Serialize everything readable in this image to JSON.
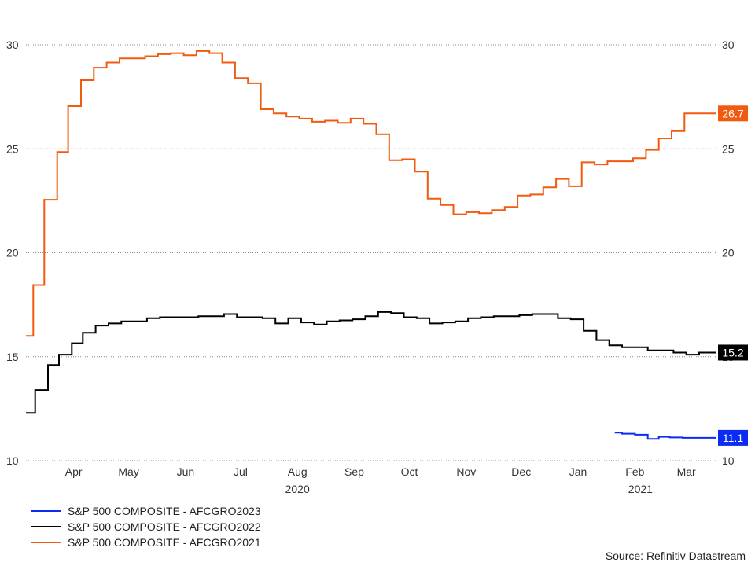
{
  "chart_data": {
    "type": "line",
    "ylim": [
      10,
      30
    ],
    "y_ticks": [
      10,
      15,
      20,
      25,
      30
    ],
    "grid": true,
    "legend_position": "bottom-left",
    "x_range": [
      "2020-03-20",
      "2021-03-31"
    ],
    "month_ticks": [
      {
        "label": "Apr",
        "date": "2020-04-15"
      },
      {
        "label": "May",
        "date": "2020-05-15"
      },
      {
        "label": "Jun",
        "date": "2020-06-15"
      },
      {
        "label": "Jul",
        "date": "2020-07-15"
      },
      {
        "label": "Aug",
        "date": "2020-08-15"
      },
      {
        "label": "Sep",
        "date": "2020-09-15"
      },
      {
        "label": "Oct",
        "date": "2020-10-15"
      },
      {
        "label": "Nov",
        "date": "2020-11-15"
      },
      {
        "label": "Dec",
        "date": "2020-12-15"
      },
      {
        "label": "Jan",
        "date": "2021-01-15"
      },
      {
        "label": "Feb",
        "date": "2021-02-15"
      },
      {
        "label": "Mar",
        "date": "2021-03-15"
      }
    ],
    "year_labels": [
      {
        "label": "2020",
        "date": "2020-08-15"
      },
      {
        "label": "2021",
        "date": "2021-02-18"
      }
    ],
    "series": [
      {
        "name": "S&P 500 COMPOSITE - AFCGRO2023",
        "color": "#0a2cf5",
        "last_value_label": "11.1",
        "points": [
          [
            "2021-02-04",
            11.35
          ],
          [
            "2021-02-08",
            11.35
          ],
          [
            "2021-02-08",
            11.3
          ],
          [
            "2021-02-15",
            11.3
          ],
          [
            "2021-02-15",
            11.25
          ],
          [
            "2021-02-22",
            11.25
          ],
          [
            "2021-02-22",
            11.05
          ],
          [
            "2021-02-28",
            11.05
          ],
          [
            "2021-02-28",
            11.15
          ],
          [
            "2021-03-06",
            11.15
          ],
          [
            "2021-03-06",
            11.12
          ],
          [
            "2021-03-13",
            11.12
          ],
          [
            "2021-03-13",
            11.1
          ],
          [
            "2021-03-31",
            11.1
          ]
        ]
      },
      {
        "name": "S&P 500 COMPOSITE - AFCGRO2022",
        "color": "#000000",
        "last_value_label": "15.2",
        "points": [
          [
            "2020-03-20",
            12.3
          ],
          [
            "2020-03-25",
            12.3
          ],
          [
            "2020-03-25",
            13.4
          ],
          [
            "2020-04-01",
            13.4
          ],
          [
            "2020-04-01",
            14.6
          ],
          [
            "2020-04-07",
            14.6
          ],
          [
            "2020-04-07",
            15.1
          ],
          [
            "2020-04-14",
            15.1
          ],
          [
            "2020-04-14",
            15.65
          ],
          [
            "2020-04-20",
            15.65
          ],
          [
            "2020-04-20",
            16.15
          ],
          [
            "2020-04-27",
            16.15
          ],
          [
            "2020-04-27",
            16.5
          ],
          [
            "2020-05-04",
            16.5
          ],
          [
            "2020-05-04",
            16.6
          ],
          [
            "2020-05-11",
            16.6
          ],
          [
            "2020-05-11",
            16.7
          ],
          [
            "2020-05-25",
            16.7
          ],
          [
            "2020-05-25",
            16.85
          ],
          [
            "2020-06-01",
            16.85
          ],
          [
            "2020-06-01",
            16.9
          ],
          [
            "2020-06-22",
            16.9
          ],
          [
            "2020-06-22",
            16.95
          ],
          [
            "2020-07-06",
            16.95
          ],
          [
            "2020-07-06",
            17.05
          ],
          [
            "2020-07-13",
            17.05
          ],
          [
            "2020-07-13",
            16.9
          ],
          [
            "2020-07-27",
            16.9
          ],
          [
            "2020-07-27",
            16.85
          ],
          [
            "2020-08-03",
            16.85
          ],
          [
            "2020-08-03",
            16.6
          ],
          [
            "2020-08-10",
            16.6
          ],
          [
            "2020-08-10",
            16.85
          ],
          [
            "2020-08-17",
            16.85
          ],
          [
            "2020-08-17",
            16.65
          ],
          [
            "2020-08-24",
            16.65
          ],
          [
            "2020-08-24",
            16.55
          ],
          [
            "2020-08-31",
            16.55
          ],
          [
            "2020-08-31",
            16.7
          ],
          [
            "2020-09-07",
            16.7
          ],
          [
            "2020-09-07",
            16.75
          ],
          [
            "2020-09-14",
            16.75
          ],
          [
            "2020-09-14",
            16.8
          ],
          [
            "2020-09-21",
            16.8
          ],
          [
            "2020-09-21",
            16.95
          ],
          [
            "2020-09-28",
            16.95
          ],
          [
            "2020-09-28",
            17.15
          ],
          [
            "2020-10-05",
            17.15
          ],
          [
            "2020-10-05",
            17.1
          ],
          [
            "2020-10-12",
            17.1
          ],
          [
            "2020-10-12",
            16.9
          ],
          [
            "2020-10-19",
            16.9
          ],
          [
            "2020-10-19",
            16.85
          ],
          [
            "2020-10-26",
            16.85
          ],
          [
            "2020-10-26",
            16.6
          ],
          [
            "2020-11-02",
            16.6
          ],
          [
            "2020-11-02",
            16.65
          ],
          [
            "2020-11-09",
            16.65
          ],
          [
            "2020-11-09",
            16.7
          ],
          [
            "2020-11-16",
            16.7
          ],
          [
            "2020-11-16",
            16.85
          ],
          [
            "2020-11-23",
            16.85
          ],
          [
            "2020-11-23",
            16.9
          ],
          [
            "2020-11-30",
            16.9
          ],
          [
            "2020-11-30",
            16.95
          ],
          [
            "2020-12-14",
            16.95
          ],
          [
            "2020-12-14",
            17.0
          ],
          [
            "2020-12-21",
            17.0
          ],
          [
            "2020-12-21",
            17.05
          ],
          [
            "2021-01-04",
            17.05
          ],
          [
            "2021-01-04",
            16.85
          ],
          [
            "2021-01-11",
            16.85
          ],
          [
            "2021-01-11",
            16.8
          ],
          [
            "2021-01-18",
            16.8
          ],
          [
            "2021-01-18",
            16.25
          ],
          [
            "2021-01-25",
            16.25
          ],
          [
            "2021-01-25",
            15.8
          ],
          [
            "2021-02-01",
            15.8
          ],
          [
            "2021-02-01",
            15.55
          ],
          [
            "2021-02-08",
            15.55
          ],
          [
            "2021-02-08",
            15.45
          ],
          [
            "2021-02-22",
            15.45
          ],
          [
            "2021-02-22",
            15.3
          ],
          [
            "2021-03-08",
            15.3
          ],
          [
            "2021-03-08",
            15.2
          ],
          [
            "2021-03-15",
            15.2
          ],
          [
            "2021-03-15",
            15.1
          ],
          [
            "2021-03-22",
            15.1
          ],
          [
            "2021-03-22",
            15.2
          ],
          [
            "2021-03-31",
            15.2
          ]
        ]
      },
      {
        "name": "S&P 500 COMPOSITE - AFCGRO2021",
        "color": "#f25a0f",
        "last_value_label": "26.7",
        "points": [
          [
            "2020-03-20",
            16.0
          ],
          [
            "2020-03-24",
            16.0
          ],
          [
            "2020-03-24",
            18.45
          ],
          [
            "2020-03-30",
            18.45
          ],
          [
            "2020-03-30",
            22.55
          ],
          [
            "2020-04-06",
            22.55
          ],
          [
            "2020-04-06",
            24.85
          ],
          [
            "2020-04-12",
            24.85
          ],
          [
            "2020-04-12",
            27.05
          ],
          [
            "2020-04-19",
            27.05
          ],
          [
            "2020-04-19",
            28.3
          ],
          [
            "2020-04-26",
            28.3
          ],
          [
            "2020-04-26",
            28.9
          ],
          [
            "2020-05-03",
            28.9
          ],
          [
            "2020-05-03",
            29.15
          ],
          [
            "2020-05-10",
            29.15
          ],
          [
            "2020-05-10",
            29.35
          ],
          [
            "2020-05-24",
            29.35
          ],
          [
            "2020-05-24",
            29.45
          ],
          [
            "2020-05-31",
            29.45
          ],
          [
            "2020-05-31",
            29.55
          ],
          [
            "2020-06-07",
            29.55
          ],
          [
            "2020-06-07",
            29.6
          ],
          [
            "2020-06-14",
            29.6
          ],
          [
            "2020-06-14",
            29.5
          ],
          [
            "2020-06-21",
            29.5
          ],
          [
            "2020-06-21",
            29.7
          ],
          [
            "2020-06-28",
            29.7
          ],
          [
            "2020-06-28",
            29.6
          ],
          [
            "2020-07-05",
            29.6
          ],
          [
            "2020-07-05",
            29.15
          ],
          [
            "2020-07-12",
            29.15
          ],
          [
            "2020-07-12",
            28.4
          ],
          [
            "2020-07-19",
            28.4
          ],
          [
            "2020-07-19",
            28.15
          ],
          [
            "2020-07-26",
            28.15
          ],
          [
            "2020-07-26",
            26.9
          ],
          [
            "2020-08-02",
            26.9
          ],
          [
            "2020-08-02",
            26.7
          ],
          [
            "2020-08-09",
            26.7
          ],
          [
            "2020-08-09",
            26.55
          ],
          [
            "2020-08-16",
            26.55
          ],
          [
            "2020-08-16",
            26.45
          ],
          [
            "2020-08-23",
            26.45
          ],
          [
            "2020-08-23",
            26.3
          ],
          [
            "2020-08-30",
            26.3
          ],
          [
            "2020-08-30",
            26.35
          ],
          [
            "2020-09-06",
            26.35
          ],
          [
            "2020-09-06",
            26.25
          ],
          [
            "2020-09-13",
            26.25
          ],
          [
            "2020-09-13",
            26.45
          ],
          [
            "2020-09-20",
            26.45
          ],
          [
            "2020-09-20",
            26.2
          ],
          [
            "2020-09-27",
            26.2
          ],
          [
            "2020-09-27",
            25.7
          ],
          [
            "2020-10-04",
            25.7
          ],
          [
            "2020-10-04",
            24.45
          ],
          [
            "2020-10-11",
            24.45
          ],
          [
            "2020-10-11",
            24.5
          ],
          [
            "2020-10-18",
            24.5
          ],
          [
            "2020-10-18",
            23.9
          ],
          [
            "2020-10-25",
            23.9
          ],
          [
            "2020-10-25",
            22.6
          ],
          [
            "2020-11-01",
            22.6
          ],
          [
            "2020-11-01",
            22.3
          ],
          [
            "2020-11-08",
            22.3
          ],
          [
            "2020-11-08",
            21.85
          ],
          [
            "2020-11-15",
            21.85
          ],
          [
            "2020-11-15",
            21.95
          ],
          [
            "2020-11-22",
            21.95
          ],
          [
            "2020-11-22",
            21.9
          ],
          [
            "2020-11-29",
            21.9
          ],
          [
            "2020-11-29",
            22.05
          ],
          [
            "2020-12-06",
            22.05
          ],
          [
            "2020-12-06",
            22.2
          ],
          [
            "2020-12-13",
            22.2
          ],
          [
            "2020-12-13",
            22.75
          ],
          [
            "2020-12-20",
            22.75
          ],
          [
            "2020-12-20",
            22.8
          ],
          [
            "2020-12-27",
            22.8
          ],
          [
            "2020-12-27",
            23.15
          ],
          [
            "2021-01-03",
            23.15
          ],
          [
            "2021-01-03",
            23.55
          ],
          [
            "2021-01-10",
            23.55
          ],
          [
            "2021-01-10",
            23.2
          ],
          [
            "2021-01-17",
            23.2
          ],
          [
            "2021-01-17",
            24.35
          ],
          [
            "2021-01-24",
            24.35
          ],
          [
            "2021-01-24",
            24.25
          ],
          [
            "2021-01-31",
            24.25
          ],
          [
            "2021-01-31",
            24.4
          ],
          [
            "2021-02-14",
            24.4
          ],
          [
            "2021-02-14",
            24.55
          ],
          [
            "2021-02-21",
            24.55
          ],
          [
            "2021-02-21",
            24.95
          ],
          [
            "2021-02-28",
            24.95
          ],
          [
            "2021-02-28",
            25.5
          ],
          [
            "2021-03-07",
            25.5
          ],
          [
            "2021-03-07",
            25.85
          ],
          [
            "2021-03-14",
            25.85
          ],
          [
            "2021-03-14",
            26.7
          ],
          [
            "2021-03-31",
            26.7
          ]
        ]
      }
    ],
    "source": "Source: Refinitiv Datastream"
  }
}
